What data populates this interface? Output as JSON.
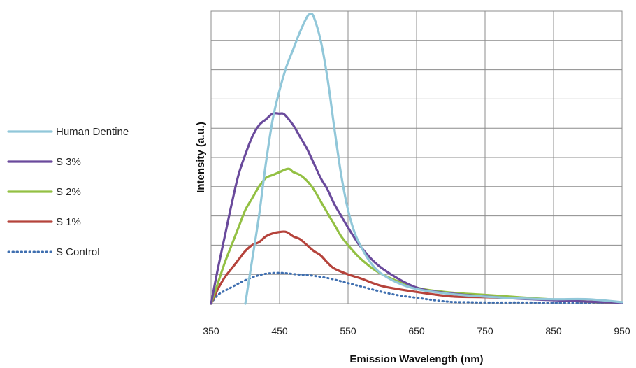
{
  "chart_data": {
    "type": "line",
    "title": "",
    "xlabel": "Emission Wavelength (nm)",
    "ylabel": "Intensity  (a.u.)",
    "xlim": [
      350,
      950
    ],
    "ylim": [
      0,
      1
    ],
    "x_ticks": [
      "350",
      "450",
      "550",
      "650",
      "750",
      "850",
      "950"
    ],
    "y_gridlines": 10,
    "x_gridlines": 6,
    "grid": true,
    "legend_position": "left",
    "series": [
      {
        "name": "Human Dentine",
        "color": "#91c7d9",
        "style": "solid",
        "points": [
          [
            400,
            0
          ],
          [
            410,
            0.15
          ],
          [
            420,
            0.3
          ],
          [
            430,
            0.48
          ],
          [
            440,
            0.63
          ],
          [
            450,
            0.73
          ],
          [
            460,
            0.81
          ],
          [
            470,
            0.87
          ],
          [
            480,
            0.93
          ],
          [
            490,
            0.98
          ],
          [
            495,
            0.99
          ],
          [
            500,
            0.98
          ],
          [
            510,
            0.9
          ],
          [
            520,
            0.77
          ],
          [
            530,
            0.6
          ],
          [
            540,
            0.44
          ],
          [
            550,
            0.32
          ],
          [
            560,
            0.24
          ],
          [
            570,
            0.19
          ],
          [
            580,
            0.15
          ],
          [
            590,
            0.12
          ],
          [
            600,
            0.1
          ],
          [
            620,
            0.074
          ],
          [
            650,
            0.05
          ],
          [
            700,
            0.033
          ],
          [
            750,
            0.024
          ],
          [
            800,
            0.018
          ],
          [
            850,
            0.015
          ],
          [
            900,
            0.015
          ],
          [
            950,
            0.005
          ]
        ]
      },
      {
        "name": "S 3%",
        "color": "#6a4a9c",
        "style": "solid",
        "points": [
          [
            350,
            0
          ],
          [
            360,
            0.12
          ],
          [
            370,
            0.23
          ],
          [
            380,
            0.34
          ],
          [
            390,
            0.44
          ],
          [
            400,
            0.51
          ],
          [
            410,
            0.57
          ],
          [
            420,
            0.61
          ],
          [
            430,
            0.63
          ],
          [
            440,
            0.65
          ],
          [
            450,
            0.65
          ],
          [
            455,
            0.65
          ],
          [
            460,
            0.64
          ],
          [
            470,
            0.61
          ],
          [
            480,
            0.57
          ],
          [
            490,
            0.53
          ],
          [
            500,
            0.48
          ],
          [
            510,
            0.43
          ],
          [
            520,
            0.39
          ],
          [
            530,
            0.34
          ],
          [
            540,
            0.3
          ],
          [
            550,
            0.26
          ],
          [
            570,
            0.19
          ],
          [
            600,
            0.12
          ],
          [
            650,
            0.055
          ],
          [
            700,
            0.035
          ],
          [
            750,
            0.025
          ],
          [
            800,
            0.017
          ],
          [
            850,
            0.012
          ],
          [
            900,
            0.007
          ],
          [
            950,
            0.003
          ]
        ]
      },
      {
        "name": "S 2%",
        "color": "#93c043",
        "style": "solid",
        "points": [
          [
            350,
            0
          ],
          [
            360,
            0.07
          ],
          [
            370,
            0.14
          ],
          [
            380,
            0.2
          ],
          [
            390,
            0.26
          ],
          [
            400,
            0.32
          ],
          [
            410,
            0.36
          ],
          [
            420,
            0.4
          ],
          [
            430,
            0.43
          ],
          [
            440,
            0.44
          ],
          [
            450,
            0.45
          ],
          [
            460,
            0.46
          ],
          [
            465,
            0.46
          ],
          [
            470,
            0.45
          ],
          [
            480,
            0.44
          ],
          [
            490,
            0.42
          ],
          [
            500,
            0.39
          ],
          [
            510,
            0.35
          ],
          [
            520,
            0.31
          ],
          [
            530,
            0.27
          ],
          [
            540,
            0.23
          ],
          [
            550,
            0.2
          ],
          [
            570,
            0.15
          ],
          [
            600,
            0.1
          ],
          [
            650,
            0.055
          ],
          [
            700,
            0.038
          ],
          [
            750,
            0.03
          ],
          [
            800,
            0.022
          ],
          [
            850,
            0.014
          ],
          [
            900,
            0.007
          ],
          [
            950,
            0.003
          ]
        ]
      },
      {
        "name": "S 1%",
        "color": "#b5433b",
        "style": "solid",
        "points": [
          [
            350,
            0
          ],
          [
            360,
            0.05
          ],
          [
            370,
            0.09
          ],
          [
            380,
            0.12
          ],
          [
            390,
            0.15
          ],
          [
            400,
            0.18
          ],
          [
            410,
            0.2
          ],
          [
            420,
            0.21
          ],
          [
            430,
            0.23
          ],
          [
            440,
            0.24
          ],
          [
            450,
            0.245
          ],
          [
            460,
            0.245
          ],
          [
            470,
            0.23
          ],
          [
            480,
            0.22
          ],
          [
            490,
            0.2
          ],
          [
            500,
            0.18
          ],
          [
            510,
            0.165
          ],
          [
            520,
            0.14
          ],
          [
            530,
            0.12
          ],
          [
            550,
            0.1
          ],
          [
            570,
            0.085
          ],
          [
            600,
            0.06
          ],
          [
            650,
            0.04
          ],
          [
            700,
            0.025
          ],
          [
            750,
            0.022
          ],
          [
            800,
            0.018
          ],
          [
            850,
            0.013
          ],
          [
            900,
            0.007
          ],
          [
            950,
            0.003
          ]
        ]
      },
      {
        "name": "S Control",
        "color": "#3f6fb0",
        "style": "dotted",
        "points": [
          [
            350,
            0
          ],
          [
            360,
            0.03
          ],
          [
            375,
            0.05
          ],
          [
            400,
            0.08
          ],
          [
            425,
            0.1
          ],
          [
            450,
            0.105
          ],
          [
            475,
            0.1
          ],
          [
            500,
            0.095
          ],
          [
            525,
            0.085
          ],
          [
            550,
            0.07
          ],
          [
            575,
            0.055
          ],
          [
            600,
            0.04
          ],
          [
            625,
            0.028
          ],
          [
            650,
            0.02
          ],
          [
            675,
            0.012
          ],
          [
            700,
            0.006
          ],
          [
            725,
            0.005
          ],
          [
            750,
            0.004
          ],
          [
            800,
            0.004
          ],
          [
            850,
            0.003
          ],
          [
            900,
            0.002
          ],
          [
            950,
            0.001
          ]
        ]
      }
    ]
  }
}
